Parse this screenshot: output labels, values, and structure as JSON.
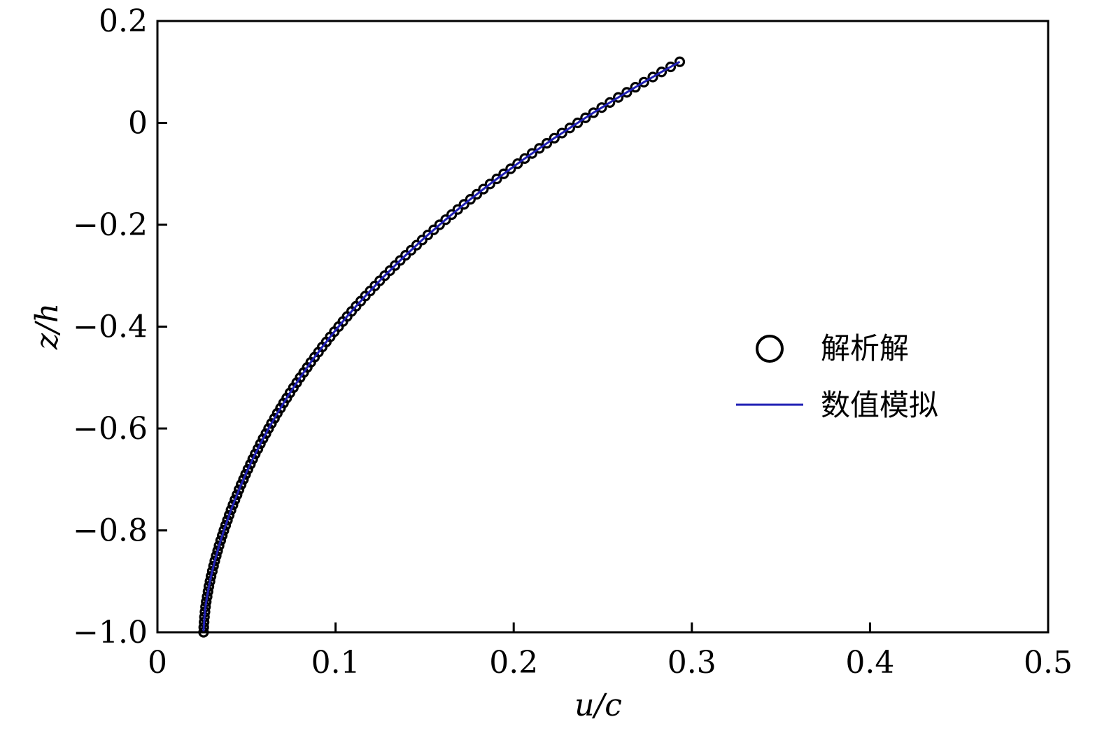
{
  "chart_data": {
    "type": "line",
    "xlabel": "u/c",
    "ylabel": "z/h",
    "xlim": [
      0,
      0.5
    ],
    "ylim": [
      -1.0,
      0.2
    ],
    "x_ticks": [
      0,
      0.1,
      0.2,
      0.3,
      0.4,
      0.5
    ],
    "x_tick_labels": [
      "0",
      "0.1",
      "0.2",
      "0.3",
      "0.4",
      "0.5"
    ],
    "y_ticks": [
      0.2,
      0,
      -0.2,
      -0.4,
      -0.6,
      -0.8,
      -1.0
    ],
    "y_tick_labels": [
      "0.2",
      "0",
      "−0.2",
      "−0.4",
      "−0.6",
      "−0.8",
      "−1.0"
    ],
    "grid": false,
    "legend_position": "center-right",
    "series": [
      {
        "name": "解析解",
        "style": "markers",
        "marker": "circle-open",
        "color": "#000000",
        "points": [
          [
            0.0259,
            -1.0
          ],
          [
            0.026,
            -0.99
          ],
          [
            0.0262,
            -0.98
          ],
          [
            0.0264,
            -0.97
          ],
          [
            0.0267,
            -0.96
          ],
          [
            0.027,
            -0.95
          ],
          [
            0.0274,
            -0.94
          ],
          [
            0.0279,
            -0.93
          ],
          [
            0.0284,
            -0.92
          ],
          [
            0.0289,
            -0.91
          ],
          [
            0.0295,
            -0.9
          ],
          [
            0.0301,
            -0.89
          ],
          [
            0.0308,
            -0.88
          ],
          [
            0.0315,
            -0.87
          ],
          [
            0.0322,
            -0.86
          ],
          [
            0.033,
            -0.85
          ],
          [
            0.0338,
            -0.84
          ],
          [
            0.0346,
            -0.83
          ],
          [
            0.0355,
            -0.82
          ],
          [
            0.0364,
            -0.81
          ],
          [
            0.0373,
            -0.8
          ],
          [
            0.0383,
            -0.79
          ],
          [
            0.0393,
            -0.78
          ],
          [
            0.0403,
            -0.77
          ],
          [
            0.0413,
            -0.76
          ],
          [
            0.0424,
            -0.75
          ],
          [
            0.0435,
            -0.74
          ],
          [
            0.0447,
            -0.73
          ],
          [
            0.0458,
            -0.72
          ],
          [
            0.047,
            -0.71
          ],
          [
            0.0483,
            -0.7
          ],
          [
            0.0495,
            -0.69
          ],
          [
            0.0508,
            -0.68
          ],
          [
            0.0522,
            -0.67
          ],
          [
            0.0535,
            -0.66
          ],
          [
            0.0549,
            -0.65
          ],
          [
            0.0564,
            -0.64
          ],
          [
            0.0578,
            -0.63
          ],
          [
            0.0593,
            -0.62
          ],
          [
            0.0609,
            -0.61
          ],
          [
            0.0624,
            -0.6
          ],
          [
            0.064,
            -0.59
          ],
          [
            0.0657,
            -0.58
          ],
          [
            0.0673,
            -0.57
          ],
          [
            0.0691,
            -0.56
          ],
          [
            0.0708,
            -0.55
          ],
          [
            0.0726,
            -0.54
          ],
          [
            0.0744,
            -0.53
          ],
          [
            0.0763,
            -0.52
          ],
          [
            0.0782,
            -0.51
          ],
          [
            0.0801,
            -0.5
          ],
          [
            0.0821,
            -0.49
          ],
          [
            0.0841,
            -0.48
          ],
          [
            0.0861,
            -0.47
          ],
          [
            0.0882,
            -0.46
          ],
          [
            0.0904,
            -0.45
          ],
          [
            0.0925,
            -0.44
          ],
          [
            0.0948,
            -0.43
          ],
          [
            0.097,
            -0.42
          ],
          [
            0.0993,
            -0.41
          ],
          [
            0.1017,
            -0.4
          ],
          [
            0.1041,
            -0.39
          ],
          [
            0.1065,
            -0.38
          ],
          [
            0.109,
            -0.37
          ],
          [
            0.1115,
            -0.36
          ],
          [
            0.1141,
            -0.35
          ],
          [
            0.1167,
            -0.34
          ],
          [
            0.1194,
            -0.33
          ],
          [
            0.1221,
            -0.32
          ],
          [
            0.1248,
            -0.31
          ],
          [
            0.1276,
            -0.3
          ],
          [
            0.1305,
            -0.29
          ],
          [
            0.1334,
            -0.28
          ],
          [
            0.1363,
            -0.27
          ],
          [
            0.1393,
            -0.26
          ],
          [
            0.1424,
            -0.25
          ],
          [
            0.1455,
            -0.24
          ],
          [
            0.1486,
            -0.23
          ],
          [
            0.1518,
            -0.22
          ],
          [
            0.1551,
            -0.21
          ],
          [
            0.1584,
            -0.2
          ],
          [
            0.1618,
            -0.19
          ],
          [
            0.1652,
            -0.18
          ],
          [
            0.1686,
            -0.17
          ],
          [
            0.1721,
            -0.16
          ],
          [
            0.1757,
            -0.15
          ],
          [
            0.1793,
            -0.14
          ],
          [
            0.183,
            -0.13
          ],
          [
            0.1867,
            -0.12
          ],
          [
            0.1905,
            -0.11
          ],
          [
            0.1944,
            -0.1
          ],
          [
            0.1983,
            -0.09
          ],
          [
            0.2022,
            -0.08
          ],
          [
            0.2062,
            -0.07
          ],
          [
            0.2103,
            -0.06
          ],
          [
            0.2144,
            -0.05
          ],
          [
            0.2186,
            -0.04
          ],
          [
            0.2228,
            -0.03
          ],
          [
            0.2271,
            -0.02
          ],
          [
            0.2315,
            -0.01
          ],
          [
            0.2359,
            0.0
          ],
          [
            0.2403,
            0.01
          ],
          [
            0.2448,
            0.02
          ],
          [
            0.2494,
            0.03
          ],
          [
            0.254,
            0.04
          ],
          [
            0.2587,
            0.05
          ],
          [
            0.2635,
            0.06
          ],
          [
            0.2683,
            0.07
          ],
          [
            0.2731,
            0.08
          ],
          [
            0.2781,
            0.09
          ],
          [
            0.283,
            0.1
          ],
          [
            0.2881,
            0.11
          ],
          [
            0.2932,
            0.12
          ]
        ]
      },
      {
        "name": "数值模拟",
        "style": "line",
        "color": "#1f1fb4",
        "points": []
      }
    ]
  }
}
